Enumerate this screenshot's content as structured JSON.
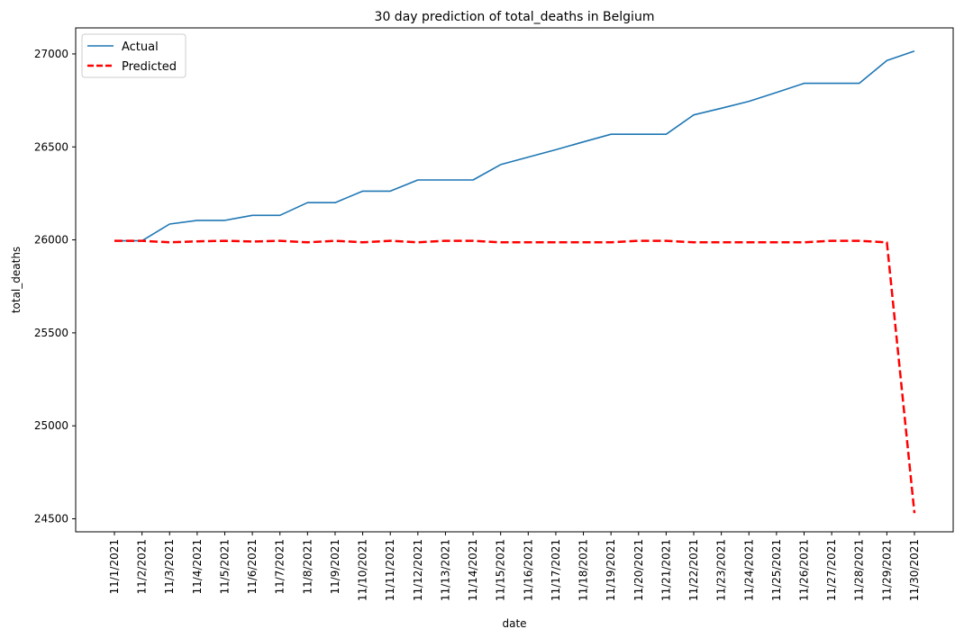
{
  "chart_data": {
    "type": "line",
    "title": "30 day prediction of total_deaths in Belgium",
    "xlabel": "date",
    "ylabel": "total_deaths",
    "ylim": [
      24430,
      27140
    ],
    "yticks": [
      24500,
      25000,
      25500,
      26000,
      26500,
      27000
    ],
    "grid": false,
    "legend_position": "top-left",
    "categories": [
      "11/1/2021",
      "11/2/2021",
      "11/3/2021",
      "11/4/2021",
      "11/5/2021",
      "11/6/2021",
      "11/7/2021",
      "11/8/2021",
      "11/9/2021",
      "11/10/2021",
      "11/11/2021",
      "11/12/2021",
      "11/13/2021",
      "11/14/2021",
      "11/15/2021",
      "11/16/2021",
      "11/17/2021",
      "11/18/2021",
      "11/19/2021",
      "11/20/2021",
      "11/21/2021",
      "11/22/2021",
      "11/23/2021",
      "11/24/2021",
      "11/25/2021",
      "11/26/2021",
      "11/27/2021",
      "11/28/2021",
      "11/29/2021",
      "11/30/2021"
    ],
    "series": [
      {
        "name": "Actual",
        "color": "#1f77b4",
        "style": "solid",
        "values": [
          25995,
          25995,
          26085,
          26105,
          26105,
          26132,
          26132,
          26200,
          26200,
          26262,
          26262,
          26322,
          26322,
          26322,
          26405,
          26445,
          26485,
          26527,
          26568,
          26568,
          26568,
          26672,
          26708,
          26745,
          26793,
          26842,
          26842,
          26842,
          26965,
          27015
        ]
      },
      {
        "name": "Predicted",
        "color": "#ff0000",
        "style": "dashed",
        "values": [
          25995,
          25995,
          25987,
          25992,
          25995,
          25991,
          25995,
          25987,
          25995,
          25987,
          25995,
          25987,
          25995,
          25995,
          25987,
          25987,
          25987,
          25987,
          25987,
          25995,
          25995,
          25987,
          25987,
          25987,
          25987,
          25987,
          25995,
          25995,
          25987,
          24530
        ]
      }
    ]
  }
}
